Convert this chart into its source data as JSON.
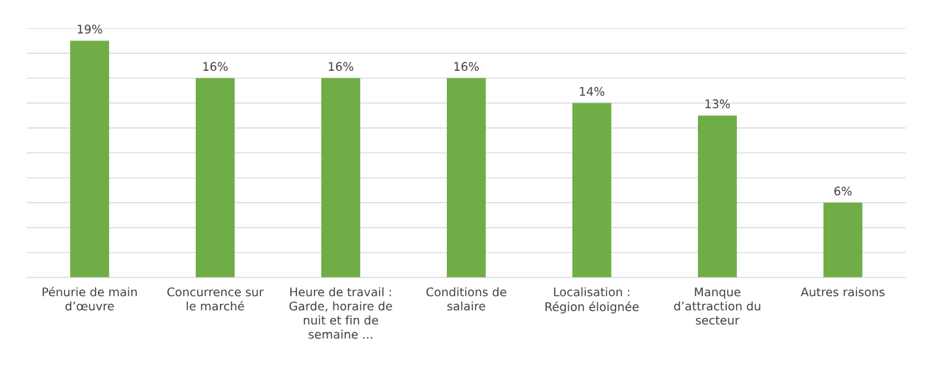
{
  "chart_data": {
    "type": "bar",
    "categories": [
      "Pénurie de main\nd’œuvre",
      "Concurrence sur\nle marché",
      "Heure de travail :\nGarde, horaire de\nnuit et fin de\nsemaine ...",
      "Conditions de\nsalaire",
      "Localisation :\nRégion éloignée",
      "Manque\nd’attraction du\nsecteur",
      "Autres raisons"
    ],
    "values": [
      19,
      16,
      16,
      16,
      14,
      13,
      6
    ],
    "value_labels": [
      "19%",
      "16%",
      "16%",
      "16%",
      "14%",
      "13%",
      "6%"
    ],
    "color": "#70ad47",
    "ylim": [
      0,
      20
    ],
    "yticks": [
      {
        "value": 0,
        "label": null
      },
      {
        "value": 2,
        "label": null
      },
      {
        "value": 4,
        "label": null
      },
      {
        "value": 6,
        "label": null
      },
      {
        "value": 8,
        "label": null
      },
      {
        "value": 10,
        "label": null
      },
      {
        "value": 12,
        "label": null
      },
      {
        "value": 14,
        "label": null
      },
      {
        "value": 16,
        "label": null
      },
      {
        "value": 18,
        "label": null
      },
      {
        "value": 20,
        "label": null
      }
    ],
    "grid": "y",
    "tick_labels": "x"
  }
}
